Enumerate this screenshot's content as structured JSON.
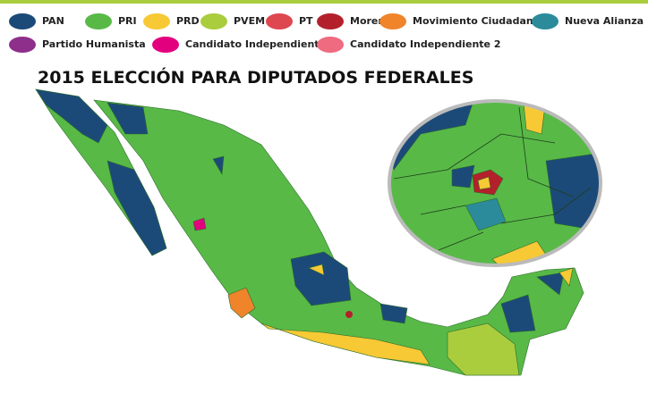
{
  "title": "2015 ELECCIÓN PARA DIPUTADOS FEDERALES",
  "legend": [
    {
      "name": "PAN",
      "color": "#1c4a78"
    },
    {
      "name": "PRI",
      "color": "#58b947"
    },
    {
      "name": "PRD",
      "color": "#f7c935"
    },
    {
      "name": "PVEM",
      "color": "#a9cd3d"
    },
    {
      "name": "PT",
      "color": "#de4650"
    },
    {
      "name": "Morena",
      "color": "#b3202b"
    },
    {
      "name": "Movimiento Ciudadano",
      "color": "#f0842b"
    },
    {
      "name": "Nueva Alianza",
      "color": "#2b8b9b"
    },
    {
      "name": "Partido Humanista",
      "color": "#8e2f8c"
    },
    {
      "name": "Candidato Independiente",
      "color": "#e3007e"
    },
    {
      "name": "Candidato Independiente 2",
      "color": "#ee6b80"
    }
  ]
}
